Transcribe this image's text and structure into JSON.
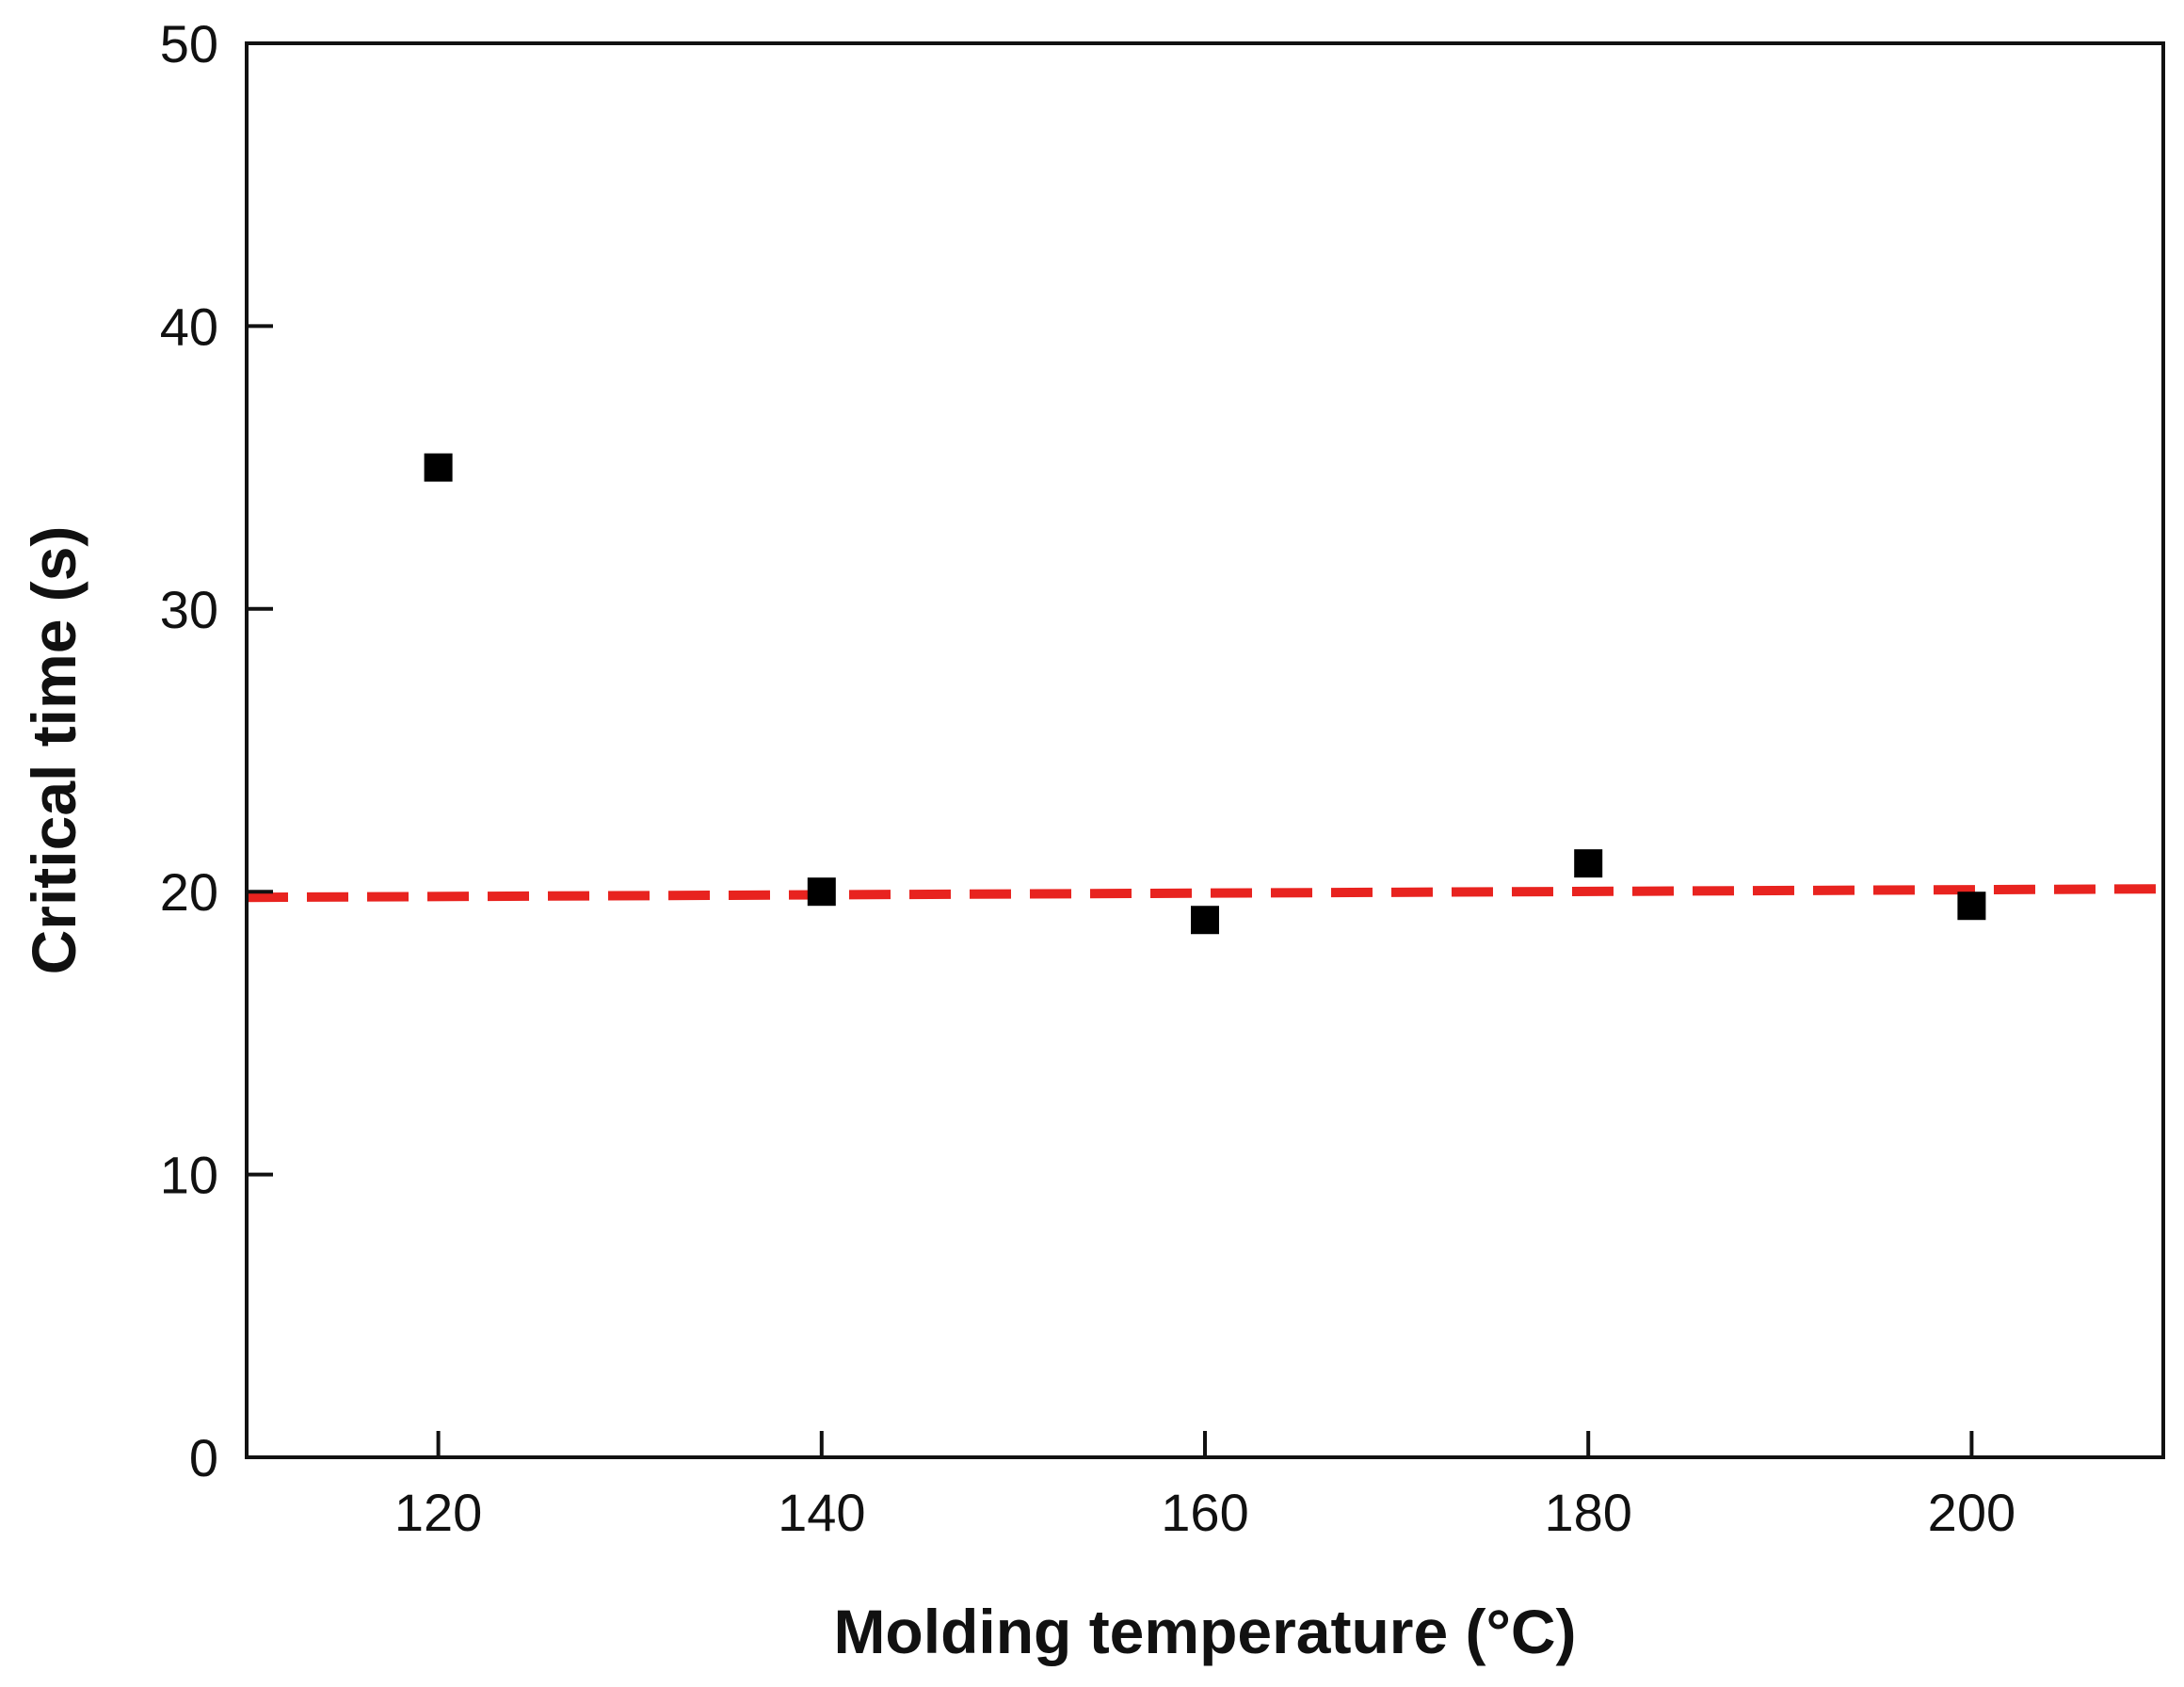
{
  "chart_data": {
    "type": "scatter",
    "title": "",
    "xlabel": "Molding temperature (°C)",
    "ylabel": "Critical time (s)",
    "xlim": [
      110,
      210
    ],
    "ylim": [
      0,
      50
    ],
    "xticks": [
      120,
      140,
      160,
      180,
      200
    ],
    "yticks": [
      0,
      10,
      20,
      30,
      40,
      50
    ],
    "grid": false,
    "legend": "none",
    "series": [
      {
        "marker": "square",
        "color": "#000000",
        "x": [
          120,
          140,
          160,
          180,
          200
        ],
        "y": [
          35,
          20,
          19,
          21,
          19.5
        ]
      }
    ],
    "reference_line": {
      "style": "dashed",
      "color": "#e8231f",
      "x": [
        110,
        210
      ],
      "y": [
        19.8,
        20.1
      ]
    }
  }
}
